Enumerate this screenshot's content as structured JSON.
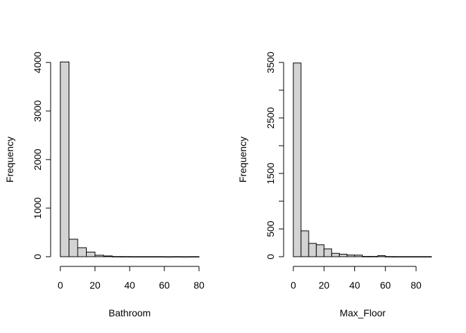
{
  "chart_data": [
    {
      "type": "bar",
      "variant": "histogram",
      "xlabel": "Bathroom",
      "ylabel": "Frequency",
      "bin_width": 5,
      "bins": [
        {
          "x0": 0,
          "x1": 5,
          "count": 4010
        },
        {
          "x0": 5,
          "x1": 10,
          "count": 360
        },
        {
          "x0": 10,
          "x1": 15,
          "count": 185
        },
        {
          "x0": 15,
          "x1": 20,
          "count": 95
        },
        {
          "x0": 20,
          "x1": 25,
          "count": 30
        },
        {
          "x0": 25,
          "x1": 30,
          "count": 15
        },
        {
          "x0": 30,
          "x1": 35,
          "count": 3
        },
        {
          "x0": 35,
          "x1": 40,
          "count": 2
        },
        {
          "x0": 40,
          "x1": 45,
          "count": 1
        },
        {
          "x0": 45,
          "x1": 50,
          "count": 1
        },
        {
          "x0": 50,
          "x1": 55,
          "count": 1
        },
        {
          "x0": 55,
          "x1": 60,
          "count": 1
        },
        {
          "x0": 60,
          "x1": 65,
          "count": 0
        },
        {
          "x0": 65,
          "x1": 70,
          "count": 1
        },
        {
          "x0": 70,
          "x1": 75,
          "count": 0
        },
        {
          "x0": 75,
          "x1": 80,
          "count": 1
        }
      ],
      "xlim": [
        0,
        80
      ],
      "ylim": [
        0,
        4000
      ],
      "x_ticks": [
        0,
        20,
        40,
        60,
        80
      ],
      "y_ticks": [
        0,
        1000,
        2000,
        3000,
        4000
      ],
      "y_tick_labels": [
        "0",
        "1000",
        "2000",
        "3000",
        "4000"
      ],
      "bar_fill": "#d3d3d3",
      "grid": false
    },
    {
      "type": "bar",
      "variant": "histogram",
      "xlabel": "Max_Floor",
      "ylabel": "Frequency",
      "bin_width": 5,
      "bins": [
        {
          "x0": 0,
          "x1": 5,
          "count": 3490
        },
        {
          "x0": 5,
          "x1": 10,
          "count": 465
        },
        {
          "x0": 10,
          "x1": 15,
          "count": 240
        },
        {
          "x0": 15,
          "x1": 20,
          "count": 215
        },
        {
          "x0": 20,
          "x1": 25,
          "count": 140
        },
        {
          "x0": 25,
          "x1": 30,
          "count": 60
        },
        {
          "x0": 30,
          "x1": 35,
          "count": 45
        },
        {
          "x0": 35,
          "x1": 40,
          "count": 30
        },
        {
          "x0": 40,
          "x1": 45,
          "count": 28
        },
        {
          "x0": 45,
          "x1": 50,
          "count": 5
        },
        {
          "x0": 50,
          "x1": 55,
          "count": 5
        },
        {
          "x0": 55,
          "x1": 60,
          "count": 18
        },
        {
          "x0": 60,
          "x1": 65,
          "count": 2
        },
        {
          "x0": 65,
          "x1": 70,
          "count": 1
        },
        {
          "x0": 70,
          "x1": 75,
          "count": 1
        },
        {
          "x0": 75,
          "x1": 80,
          "count": 1
        },
        {
          "x0": 80,
          "x1": 85,
          "count": 1
        },
        {
          "x0": 85,
          "x1": 90,
          "count": 1
        }
      ],
      "xlim": [
        0,
        90
      ],
      "ylim": [
        0,
        3500
      ],
      "x_ticks": [
        0,
        20,
        40,
        60,
        80
      ],
      "y_ticks": [
        0,
        500,
        1000,
        1500,
        2000,
        2500,
        3000,
        3500
      ],
      "y_tick_labels": [
        "0",
        "500",
        "",
        "1500",
        "",
        "2500",
        "",
        "3500"
      ],
      "bar_fill": "#d3d3d3",
      "grid": false
    }
  ]
}
